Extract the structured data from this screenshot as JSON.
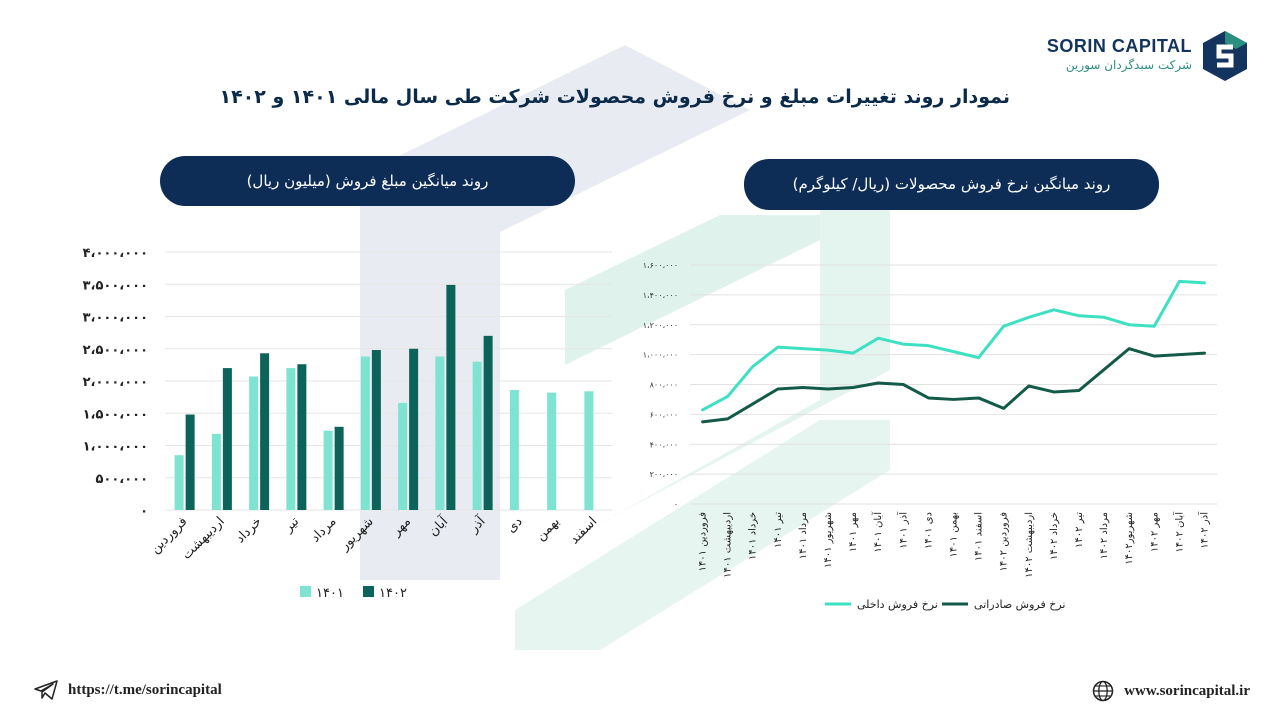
{
  "header": {
    "title": "نمودار روند تغییرات مبلغ  و نرخ فروش محصولات شرکت طی سال مالی ۱۴۰۱ و ۱۴۰۲",
    "brand_name": "SORIN CAPITAL",
    "brand_subtitle": "شرکت سبدگردان سورین"
  },
  "footer": {
    "telegram": "https://t.me/sorincapital",
    "website": "www.sorincapital.ir"
  },
  "colors": {
    "navy": "#0d2d57",
    "light_teal": "#7fe3d2",
    "dark_teal": "#0b6359",
    "line_light": "#3ee0c2",
    "line_dark": "#135a48"
  },
  "chart_data": [
    {
      "type": "bar",
      "title": "روند میانگین مبلغ فروش (میلیون ریال)",
      "categories": [
        "فروردین",
        "اردیبهشت",
        "خرداد",
        "تیر",
        "مرداد",
        "شهریور",
        "مهر",
        "آبان",
        "آذر",
        "دی",
        "بهمن",
        "اسفند"
      ],
      "yticks": [
        "۰",
        "۵۰۰،۰۰۰",
        "۱،۰۰۰،۰۰۰",
        "۱،۵۰۰،۰۰۰",
        "۲،۰۰۰،۰۰۰",
        "۲،۵۰۰،۰۰۰",
        "۳،۰۰۰،۰۰۰",
        "۳،۵۰۰،۰۰۰",
        "۴،۰۰۰،۰۰۰"
      ],
      "ylim": [
        0,
        4000000
      ],
      "legend_position": "bottom",
      "series": [
        {
          "name": "۱۴۰۱",
          "values": [
            850000,
            1180000,
            2070000,
            2200000,
            1230000,
            2380000,
            1660000,
            2380000,
            2300000,
            1860000,
            1820000,
            1840000
          ]
        },
        {
          "name": "۱۴۰۲",
          "values": [
            1480000,
            2200000,
            2430000,
            2260000,
            1290000,
            2480000,
            2500000,
            3490000,
            2700000,
            null,
            null,
            null
          ]
        }
      ]
    },
    {
      "type": "line",
      "title": "روند میانگین نرخ فروش محصولات (ریال/ کیلوگرم)",
      "categories": [
        "فروردین ۱۴۰۱",
        "اردیبهشت ۱۴۰۱",
        "خرداد ۱۴۰۱",
        "تیر ۱۴۰۱",
        "مرداد ۱۴۰۱",
        "شهریور ۱۴۰۱",
        "مهر ۱۴۰۱",
        "آبان ۱۴۰۱",
        "آذر ۱۴۰۱",
        "دی ۱۴۰۱",
        "بهمن ۱۴۰۱",
        "اسفند ۱۴۰۱",
        "فروردین ۱۴۰۲",
        "اردیبهشت ۱۴۰۲",
        "خرداد ۱۴۰۲",
        "تیر ۱۴۰۲",
        "مرداد ۱۴۰۲",
        "شهریور۱۴۰۲",
        "مهر ۱۴۰۲",
        "آبان ۱۴۰۲",
        "آذر ۱۴۰۲"
      ],
      "yticks": [
        "۰",
        "۲۰۰،۰۰۰",
        "۴۰۰،۰۰۰",
        "۶۰۰،۰۰۰",
        "۸۰۰،۰۰۰",
        "۱،۰۰۰،۰۰۰",
        "۱،۲۰۰،۰۰۰",
        "۱،۴۰۰،۰۰۰",
        "۱،۶۰۰،۰۰۰"
      ],
      "ylim": [
        0,
        1600000
      ],
      "legend_position": "bottom",
      "series": [
        {
          "name": "نرخ فروش داخلی",
          "values": [
            630000,
            720000,
            920000,
            1050000,
            1040000,
            1030000,
            1010000,
            1110000,
            1070000,
            1060000,
            1020000,
            980000,
            1190000,
            1250000,
            1300000,
            1260000,
            1250000,
            1200000,
            1190000,
            1490000,
            1480000
          ]
        },
        {
          "name": "نرخ فروش صادراتی",
          "values": [
            550000,
            570000,
            670000,
            770000,
            780000,
            770000,
            780000,
            810000,
            800000,
            710000,
            700000,
            710000,
            640000,
            790000,
            750000,
            760000,
            900000,
            1040000,
            990000,
            1000000,
            1010000
          ]
        }
      ]
    }
  ]
}
